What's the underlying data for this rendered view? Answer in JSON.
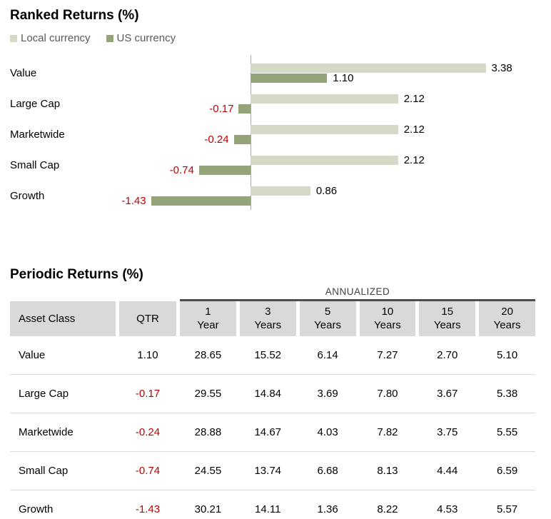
{
  "ranked_returns": {
    "title": "Ranked Returns (%)"
  },
  "chart_data": {
    "type": "bar",
    "orientation": "horizontal",
    "title": "Ranked Returns (%)",
    "categories": [
      "Value",
      "Large Cap",
      "Marketwide",
      "Small Cap",
      "Growth"
    ],
    "series": [
      {
        "name": "Local currency",
        "color": "#d5dac6",
        "values": [
          3.38,
          2.12,
          2.12,
          2.12,
          0.86
        ]
      },
      {
        "name": "US currency",
        "color": "#94a478",
        "values": [
          1.1,
          -0.17,
          -0.24,
          -0.74,
          -1.43
        ]
      }
    ],
    "xlim": [
      -1.43,
      3.38
    ],
    "zero_axis_line": true,
    "grid": false,
    "legend_position": "top-left",
    "value_labels": "end-of-bar",
    "negative_label_color": "#c00000",
    "positive_label_color": "#000000"
  },
  "periodic_returns": {
    "title": "Periodic Returns (%)",
    "annualized_label": "ANNUALIZED",
    "columns": [
      {
        "label": "Asset Class"
      },
      {
        "label": "QTR"
      },
      {
        "label": "1 Year",
        "lines": [
          "1",
          "Year"
        ]
      },
      {
        "label": "3 Years",
        "lines": [
          "3",
          "Years"
        ]
      },
      {
        "label": "5 Years",
        "lines": [
          "5",
          "Years"
        ]
      },
      {
        "label": "10 Years",
        "lines": [
          "10",
          "Years"
        ]
      },
      {
        "label": "15 Years",
        "lines": [
          "15",
          "Years"
        ]
      },
      {
        "label": "20 Years",
        "lines": [
          "20",
          "Years"
        ]
      }
    ],
    "rows": [
      {
        "asset": "Value",
        "values": [
          "1.10",
          "28.65",
          "15.52",
          "6.14",
          "7.27",
          "2.70",
          "5.10"
        ]
      },
      {
        "asset": "Large Cap",
        "values": [
          "-0.17",
          "29.55",
          "14.84",
          "3.69",
          "7.80",
          "3.67",
          "5.38"
        ]
      },
      {
        "asset": "Marketwide",
        "values": [
          "-0.24",
          "28.88",
          "14.67",
          "4.03",
          "7.82",
          "3.75",
          "5.55"
        ]
      },
      {
        "asset": "Small Cap",
        "values": [
          "-0.74",
          "24.55",
          "13.74",
          "6.68",
          "8.13",
          "4.44",
          "6.59"
        ]
      },
      {
        "asset": "Growth",
        "values": [
          "-1.43",
          "30.21",
          "14.11",
          "1.36",
          "8.22",
          "4.53",
          "5.57"
        ]
      }
    ],
    "negative_color": "#c00000",
    "header_background": "#d9d9d9"
  }
}
